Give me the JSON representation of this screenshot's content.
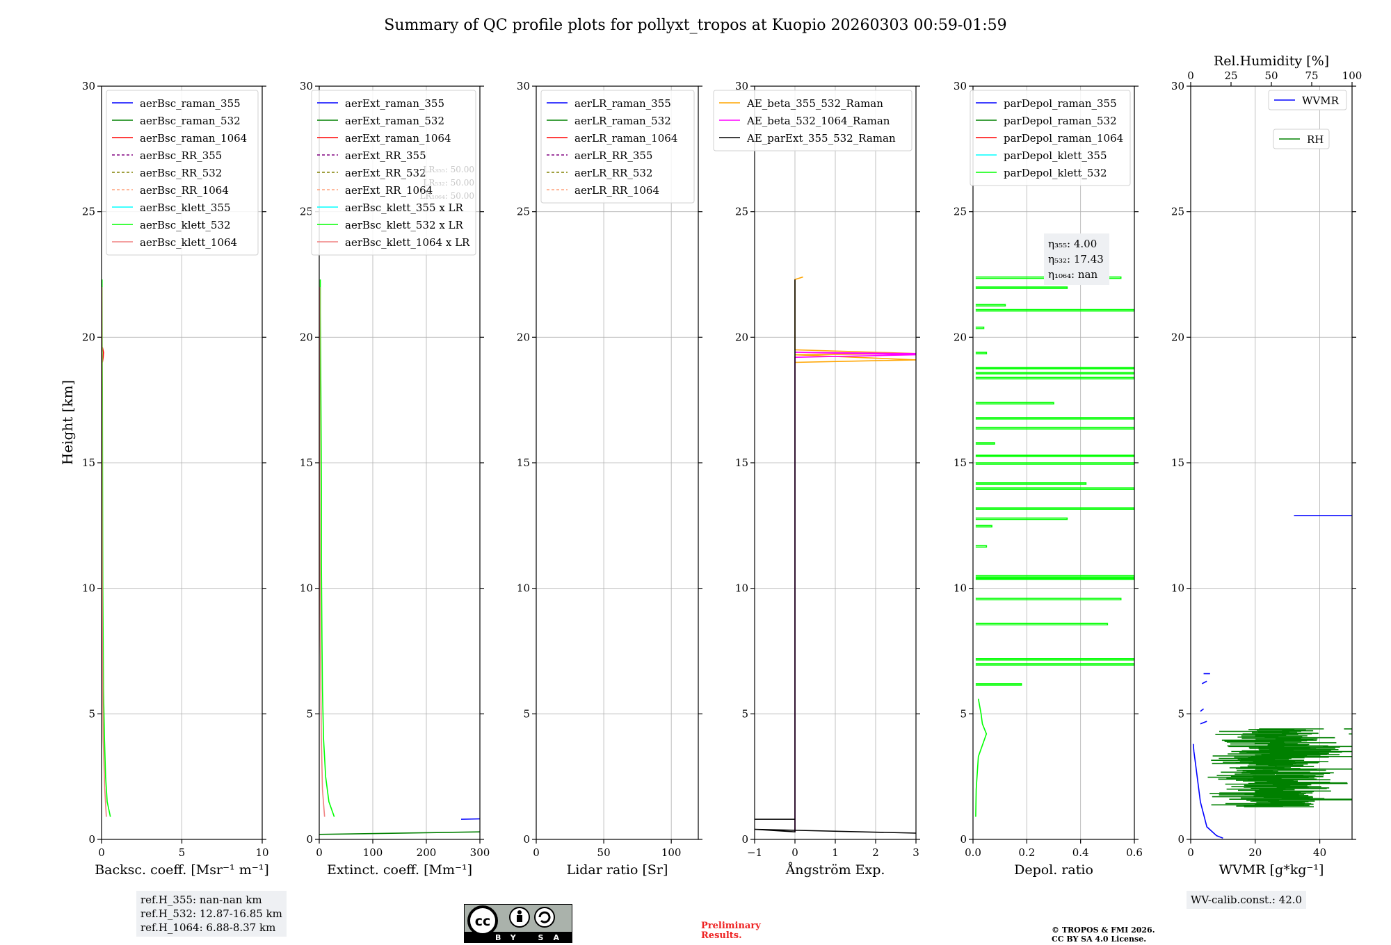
{
  "title": "Summary of QC profile plots for pollyxt_tropos at Kuopio 20260303 00:59-01:59",
  "colors": {
    "blue": "#0000ff",
    "green": "#008000",
    "red": "#ff0000",
    "purple": "#800080",
    "olive": "#808000",
    "salmon": "#ffa07a",
    "cyan": "#00ffff",
    "lime": "#00ff00",
    "lightcoral": "#f08080",
    "orange": "#ffa500",
    "magenta": "#ff00ff",
    "black": "#000000"
  },
  "shared_ylabel": "Height [km]",
  "chart_data": [
    {
      "type": "line",
      "id": "backscatter",
      "xlabel": "Backsc. coeff. [Msr⁻¹ m⁻¹]",
      "xlim": [
        0,
        10
      ],
      "xticks": [
        0,
        5,
        10
      ],
      "ylim": [
        0,
        30
      ],
      "yticks": [
        0,
        5,
        10,
        15,
        20,
        25,
        30
      ],
      "legend": "top-right",
      "series": [
        {
          "name": "aerBsc_raman_355",
          "color": "blue",
          "dash": false
        },
        {
          "name": "aerBsc_raman_532",
          "color": "green",
          "dash": false
        },
        {
          "name": "aerBsc_raman_1064",
          "color": "red",
          "dash": false,
          "points": [
            [
              0.05,
              19.0
            ],
            [
              0.1,
              19.2
            ],
            [
              0.12,
              19.4
            ],
            [
              0.05,
              19.6
            ]
          ]
        },
        {
          "name": "aerBsc_RR_355",
          "color": "purple",
          "dash": true
        },
        {
          "name": "aerBsc_RR_532",
          "color": "olive",
          "dash": true
        },
        {
          "name": "aerBsc_RR_1064",
          "color": "salmon",
          "dash": true
        },
        {
          "name": "aerBsc_klett_355",
          "color": "cyan",
          "dash": false
        },
        {
          "name": "aerBsc_klett_532",
          "color": "lime",
          "dash": false,
          "points": [
            [
              0.55,
              0.9
            ],
            [
              0.35,
              1.5
            ],
            [
              0.25,
              2.5
            ],
            [
              0.18,
              4
            ],
            [
              0.12,
              6
            ],
            [
              0.1,
              8
            ],
            [
              0.08,
              10
            ],
            [
              0.07,
              12
            ],
            [
              0.06,
              15
            ],
            [
              0.05,
              18
            ],
            [
              0.04,
              20
            ],
            [
              0.03,
              22.3
            ]
          ]
        },
        {
          "name": "aerBsc_klett_1064",
          "color": "lightcoral",
          "dash": false,
          "points": [
            [
              0.3,
              0.9
            ],
            [
              0.2,
              2
            ],
            [
              0.1,
              4
            ],
            [
              0.05,
              8
            ],
            [
              0.03,
              14
            ],
            [
              0.02,
              22
            ]
          ]
        }
      ]
    },
    {
      "type": "line",
      "id": "extinction",
      "xlabel": "Extinct. coeff. [Mm⁻¹]",
      "xlim": [
        0,
        300
      ],
      "xticks": [
        0,
        100,
        200,
        300
      ],
      "ylim": [
        0,
        30
      ],
      "yticks": [
        0,
        5,
        10,
        15,
        20,
        25,
        30
      ],
      "legend": "top-right",
      "overlay_text": [
        "LR₃₅₅: 50.00",
        "LR₅₃₂: 50.00",
        "LR₁₀₆₄: 50.00"
      ],
      "series": [
        {
          "name": "aerExt_raman_355",
          "color": "blue",
          "dash": false,
          "points": [
            [
              265,
              0.8
            ],
            [
              300,
              0.82
            ]
          ]
        },
        {
          "name": "aerExt_raman_532",
          "color": "green",
          "dash": false,
          "points": [
            [
              0,
              0.2
            ],
            [
              300,
              0.3
            ]
          ]
        },
        {
          "name": "aerExt_raman_1064",
          "color": "red",
          "dash": false
        },
        {
          "name": "aerExt_RR_355",
          "color": "purple",
          "dash": true
        },
        {
          "name": "aerExt_RR_532",
          "color": "olive",
          "dash": true
        },
        {
          "name": "aerExt_RR_1064",
          "color": "salmon",
          "dash": true
        },
        {
          "name": "aerBsc_klett_355 x LR",
          "color": "cyan",
          "dash": false
        },
        {
          "name": "aerBsc_klett_532 x LR",
          "color": "lime",
          "dash": false,
          "points": [
            [
              28,
              0.9
            ],
            [
              18,
              1.5
            ],
            [
              12,
              2.5
            ],
            [
              8,
              4
            ],
            [
              6,
              6
            ],
            [
              5,
              8
            ],
            [
              4,
              11
            ],
            [
              4,
              14
            ],
            [
              3,
              18
            ],
            [
              2,
              21
            ],
            [
              2,
              22.3
            ]
          ]
        },
        {
          "name": "aerBsc_klett_1064 x LR",
          "color": "lightcoral",
          "dash": false,
          "points": [
            [
              10,
              0.9
            ],
            [
              6,
              2
            ],
            [
              4,
              4
            ],
            [
              2,
              8
            ],
            [
              1,
              14
            ],
            [
              1,
              22
            ]
          ]
        }
      ]
    },
    {
      "type": "line",
      "id": "lidar_ratio",
      "xlabel": "Lidar ratio [Sr]",
      "xlim": [
        0,
        120
      ],
      "xticks": [
        0,
        50,
        100
      ],
      "ylim": [
        0,
        30
      ],
      "yticks": [
        0,
        5,
        10,
        15,
        20,
        25,
        30
      ],
      "legend": "top-right",
      "series": [
        {
          "name": "aerLR_raman_355",
          "color": "blue",
          "dash": false
        },
        {
          "name": "aerLR_raman_532",
          "color": "green",
          "dash": false
        },
        {
          "name": "aerLR_raman_1064",
          "color": "red",
          "dash": false
        },
        {
          "name": "aerLR_RR_355",
          "color": "purple",
          "dash": true
        },
        {
          "name": "aerLR_RR_532",
          "color": "olive",
          "dash": true
        },
        {
          "name": "aerLR_RR_1064",
          "color": "salmon",
          "dash": true
        }
      ]
    },
    {
      "type": "line",
      "id": "angstrom",
      "xlabel": "Ångström Exp.",
      "xlim": [
        -1,
        3
      ],
      "xticks": [
        -1,
        0,
        1,
        2,
        3
      ],
      "ylim": [
        0,
        30
      ],
      "yticks": [
        0,
        5,
        10,
        15,
        20,
        25,
        30
      ],
      "legend": "top-right",
      "series": [
        {
          "name": "AE_beta_355_532_Raman",
          "color": "orange",
          "dash": false,
          "points": [
            [
              0.2,
              22.4
            ],
            [
              0,
              22.3
            ],
            [
              0,
              19.5
            ],
            [
              3,
              19.35
            ],
            [
              0,
              19.3
            ],
            [
              3,
              19.1
            ],
            [
              0,
              19.0
            ]
          ]
        },
        {
          "name": "AE_beta_532_1064_Raman",
          "color": "magenta",
          "dash": false,
          "points": [
            [
              0,
              0.3
            ],
            [
              0,
              0.5
            ],
            [
              0,
              19.2
            ],
            [
              3,
              19.3
            ],
            [
              0,
              19.4
            ],
            [
              3,
              19.35
            ]
          ]
        },
        {
          "name": "AE_parExt_355_532_Raman",
          "color": "black",
          "dash": false,
          "points": [
            [
              -1,
              0.8
            ],
            [
              0,
              0.8
            ],
            [
              0,
              22.3
            ],
            [
              0,
              0.3
            ],
            [
              -1,
              0.4
            ],
            [
              3,
              0.25
            ]
          ]
        }
      ]
    },
    {
      "type": "line",
      "id": "depolarization",
      "xlabel": "Depol. ratio",
      "xlim": [
        0,
        0.6
      ],
      "xticks": [
        0.0,
        0.2,
        0.4,
        0.6
      ],
      "ylim": [
        0,
        30
      ],
      "yticks": [
        0,
        5,
        10,
        15,
        20,
        25,
        30
      ],
      "legend": "top-right",
      "annotation": [
        "η₃₅₅: 4.00",
        "η₅₃₂: 17.43",
        "η₁₀₆₄: nan"
      ],
      "series": [
        {
          "name": "parDepol_raman_355",
          "color": "blue",
          "dash": false
        },
        {
          "name": "parDepol_raman_532",
          "color": "green",
          "dash": false
        },
        {
          "name": "parDepol_raman_1064",
          "color": "red",
          "dash": false
        },
        {
          "name": "parDepol_klett_355",
          "color": "cyan",
          "dash": false
        },
        {
          "name": "parDepol_klett_532",
          "color": "lime",
          "dash": false,
          "points": [
            [
              0.01,
              0.9
            ],
            [
              0.012,
              2
            ],
            [
              0.02,
              3.3
            ],
            [
              0.05,
              4.2
            ],
            [
              0.035,
              4.6
            ],
            [
              0.03,
              5
            ],
            [
              0.02,
              5.6
            ]
          ],
          "spikes": [
            [
              6.2,
              0.18
            ],
            [
              7.0,
              0.6
            ],
            [
              7.2,
              0.6
            ],
            [
              8.6,
              0.5
            ],
            [
              9.6,
              0.55
            ],
            [
              10.4,
              0.6
            ],
            [
              10.5,
              0.6
            ],
            [
              11.7,
              0.05
            ],
            [
              12.5,
              0.07
            ],
            [
              12.8,
              0.35
            ],
            [
              13.2,
              0.6
            ],
            [
              14.0,
              0.6
            ],
            [
              14.2,
              0.42
            ],
            [
              15.0,
              0.6
            ],
            [
              15.3,
              0.6
            ],
            [
              15.8,
              0.08
            ],
            [
              16.4,
              0.6
            ],
            [
              16.8,
              0.6
            ],
            [
              17.4,
              0.3
            ],
            [
              18.4,
              0.6
            ],
            [
              18.6,
              0.6
            ],
            [
              18.8,
              0.6
            ],
            [
              19.4,
              0.05
            ],
            [
              20.4,
              0.04
            ],
            [
              21.1,
              0.6
            ],
            [
              21.3,
              0.12
            ],
            [
              22.0,
              0.35
            ],
            [
              22.4,
              0.55
            ]
          ]
        }
      ]
    },
    {
      "type": "line",
      "id": "water_vapor",
      "xlabel": "WVMR [g*kg⁻¹]",
      "xlim": [
        0,
        50
      ],
      "xticks": [
        0,
        20,
        40
      ],
      "top_xlabel": "Rel.Humidity [%]",
      "top_xlim": [
        0,
        100
      ],
      "top_xticks": [
        0,
        25,
        50,
        75,
        100
      ],
      "ylim": [
        0,
        30
      ],
      "yticks": [
        0,
        5,
        10,
        15,
        20,
        25,
        30
      ],
      "legend": "top-right",
      "series": [
        {
          "name": "WVMR",
          "color": "blue",
          "dash": false,
          "points": [
            [
              10,
              0.05
            ],
            [
              8,
              0.15
            ],
            [
              5,
              0.5
            ],
            [
              4,
              1
            ],
            [
              3,
              1.5
            ],
            [
              2.5,
              2
            ],
            [
              2,
              2.5
            ],
            [
              1.5,
              3
            ],
            [
              1,
              3.5
            ],
            [
              0.8,
              3.8
            ]
          ],
          "extra_segments": [
            [
              [
                32,
                12.9
              ],
              [
                50,
                12.9
              ]
            ],
            [
              [
                3,
                4.6
              ],
              [
                5,
                4.7
              ]
            ],
            [
              [
                3,
                5.1
              ],
              [
                4,
                5.2
              ]
            ],
            [
              [
                3.5,
                6.2
              ],
              [
                5,
                6.3
              ]
            ],
            [
              [
                4,
                6.6
              ],
              [
                6,
                6.6
              ]
            ]
          ]
        },
        {
          "name": "RH",
          "color": "green",
          "dash": false,
          "band": {
            "y_from": 1.3,
            "y_to": 4.4,
            "x_min": 5,
            "x_max": 50
          },
          "scatter_rh": [
            [
              98,
              4.2
            ],
            [
              95,
              4.4
            ],
            [
              82,
              3.7
            ],
            [
              70,
              3.5
            ],
            [
              55,
              3.3
            ],
            [
              40,
              2.8
            ],
            [
              35,
              1.6
            ]
          ]
        }
      ]
    }
  ],
  "footer": {
    "ref_lines": [
      "ref.H_355: nan-nan km",
      "ref.H_532: 12.87-16.85 km",
      "ref.H_1064: 6.88-8.37 km"
    ],
    "license_badge": "BY SA",
    "cc_glyph": "cc",
    "preliminary": [
      "Preliminary",
      "Results."
    ],
    "copyright": [
      "© TROPOS & FMI 2026.",
      "CC BY SA 4.0 License."
    ],
    "wv_calib": "WV-calib.const.: 42.0"
  }
}
